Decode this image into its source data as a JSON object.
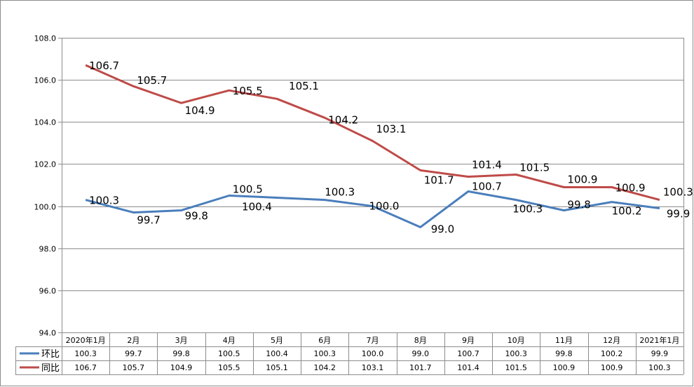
{
  "chart_data": {
    "type": "line",
    "categories": [
      "2020年1月",
      "2月",
      "3月",
      "4月",
      "5月",
      "6月",
      "7月",
      "8月",
      "9月",
      "10月",
      "11月",
      "12月",
      "2021年1月"
    ],
    "ylim": [
      94.0,
      108.0
    ],
    "yticks": [
      "94.0",
      "96.0",
      "98.0",
      "100.0",
      "102.0",
      "104.0",
      "106.0",
      "108.0"
    ],
    "grid": true,
    "legend": "data-table-bottom",
    "series": [
      {
        "name": "环比",
        "color": "#4a7ebb",
        "values": [
          100.3,
          99.7,
          99.8,
          100.5,
          100.4,
          100.3,
          100.0,
          99.0,
          100.7,
          100.3,
          99.8,
          100.2,
          99.9
        ],
        "labels": [
          "100.3",
          "99.7",
          "99.8",
          "100.5",
          "100.4",
          "100.3",
          "100.0",
          "99.0",
          "100.7",
          "100.3",
          "99.8",
          "100.2",
          "99.9"
        ]
      },
      {
        "name": "同比",
        "color": "#be4b48",
        "values": [
          106.7,
          105.7,
          104.9,
          105.5,
          105.1,
          104.2,
          103.1,
          101.7,
          101.4,
          101.5,
          100.9,
          100.9,
          100.3
        ],
        "labels": [
          "106.7",
          "105.7",
          "104.9",
          "105.5",
          "105.1",
          "104.2",
          "103.1",
          "101.7",
          "101.4",
          "101.5",
          "100.9",
          "100.9",
          "100.3"
        ]
      }
    ]
  }
}
